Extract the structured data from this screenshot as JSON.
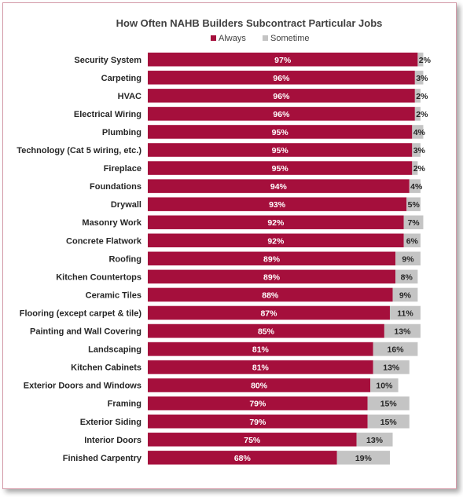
{
  "chart_data": {
    "type": "bar",
    "orientation": "horizontal",
    "stacked": true,
    "title": "How Often NAHB Builders Subcontract Particular Jobs",
    "legend_position": "top",
    "categories": [
      "Security System",
      "Carpeting",
      "HVAC",
      "Electrical Wiring",
      "Plumbing",
      "Technology (Cat 5 wiring, etc.)",
      "Fireplace",
      "Foundations",
      "Drywall",
      "Masonry Work",
      "Concrete Flatwork",
      "Roofing",
      "Kitchen Countertops",
      "Ceramic Tiles",
      "Flooring (except carpet & tile)",
      "Painting and Wall Covering",
      "Landscaping",
      "Kitchen Cabinets",
      "Exterior Doors and Windows",
      "Framing",
      "Exterior Siding",
      "Interior Doors",
      "Finished Carpentry"
    ],
    "series": [
      {
        "name": "Always",
        "color": "#a50f3c",
        "values": [
          97,
          96,
          96,
          96,
          95,
          95,
          95,
          94,
          93,
          92,
          92,
          89,
          89,
          88,
          87,
          85,
          81,
          81,
          80,
          79,
          79,
          75,
          68
        ]
      },
      {
        "name": "Sometime",
        "color": "#c4c4c4",
        "values": [
          2,
          3,
          2,
          2,
          4,
          3,
          2,
          4,
          5,
          7,
          6,
          9,
          8,
          9,
          11,
          13,
          16,
          13,
          10,
          15,
          15,
          13,
          19
        ]
      }
    ],
    "xlim": [
      0,
      100
    ],
    "grid": false,
    "value_suffix": "%"
  }
}
